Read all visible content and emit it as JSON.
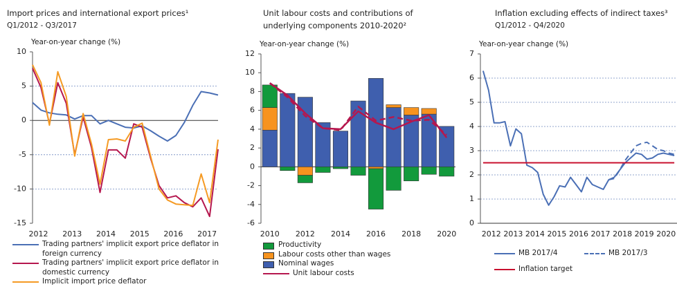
{
  "chart_data": [
    {
      "type": "line",
      "title": "Import prices and international export prices¹",
      "subtitle": "Q1/2012 - Q3/2017",
      "y_label": "Year-on-year change (%)",
      "categories": [
        "2012",
        null,
        null,
        null,
        "2013",
        null,
        null,
        null,
        "2014",
        null,
        null,
        null,
        "2015",
        null,
        null,
        null,
        "2016",
        null,
        null,
        null,
        "2017",
        null,
        null
      ],
      "ylim": [
        -15,
        10
      ],
      "yticks": [
        -15,
        -10,
        -5,
        0,
        5,
        10
      ],
      "grid": true,
      "legend": "bottom",
      "series": [
        {
          "name": "Trading partners' implicit export price deflator in foreign currency",
          "color": "#4a6fb5",
          "values": [
            2.6,
            1.5,
            1.1,
            0.9,
            0.8,
            0.2,
            0.7,
            0.7,
            -0.5,
            0,
            -0.5,
            -1.0,
            -1.1,
            -0.8,
            -1.5,
            -2.3,
            -3.0,
            -2.2,
            -0.3,
            2.2,
            4.2,
            4.0,
            3.7
          ]
        },
        {
          "name": "Trading partners' implicit export price deflator in domestic currency",
          "color": "#b5174e",
          "values": [
            7.6,
            4.8,
            -0.5,
            5.5,
            2.5,
            -5.0,
            0.5,
            -4.0,
            -10.5,
            -4.3,
            -4.3,
            -5.5,
            -0.5,
            -1.0,
            -5.5,
            -9.5,
            -11.3,
            -11.0,
            -12.0,
            -12.6,
            -11.3,
            -14.0,
            -4.2
          ]
        },
        {
          "name": "Implicit import price deflator",
          "color": "#f59a23",
          "values": [
            8.1,
            5.5,
            -0.7,
            7.1,
            3.5,
            -5.2,
            1.0,
            -3.5,
            -9.3,
            -2.8,
            -2.7,
            -3.0,
            -1.0,
            -0.4,
            -5.2,
            -10.0,
            -11.6,
            -12.2,
            -12.3,
            -12.4,
            -7.8,
            -12.0,
            -2.8
          ]
        }
      ]
    },
    {
      "type": "bar",
      "stacked": true,
      "title": "Unit labour costs and contributions of underlying components 2010-2020²",
      "y_label": "Year-on-year change (%)",
      "categories": [
        "2010",
        null,
        "2012",
        null,
        "2014",
        null,
        "2016",
        null,
        "2018",
        null,
        "2020"
      ],
      "ylim": [
        -6,
        12
      ],
      "yticks": [
        -6,
        -4,
        -2,
        0,
        2,
        4,
        6,
        8,
        10,
        12
      ],
      "grid": false,
      "legend": "bottom",
      "series": [
        {
          "name": "Productivity",
          "color": "#129a3c",
          "values": [
            2.4,
            -0.4,
            -0.8,
            -0.6,
            -0.2,
            -0.9,
            -4.3,
            -2.5,
            -1.5,
            -0.8,
            -1.0
          ]
        },
        {
          "name": "Labour costs other than wages",
          "color": "#f7931e",
          "values": [
            2.4,
            0,
            -0.9,
            0,
            0,
            0,
            -0.2,
            0.3,
            0.8,
            0.6,
            0
          ]
        },
        {
          "name": "Nominal wages",
          "color": "#3f5fae",
          "values": [
            3.9,
            7.8,
            7.4,
            4.7,
            3.8,
            7.0,
            9.4,
            6.3,
            5.5,
            5.6,
            4.3
          ]
        },
        {
          "name": "Unit labour costs",
          "type": "line",
          "color": "#b5174e",
          "values": [
            8.9,
            7.6,
            5.7,
            4.1,
            4.0,
            5.9,
            4.7,
            4.0,
            4.8,
            5.5,
            3.1
          ]
        },
        {
          "type": "line",
          "linestyle": "dashed",
          "color": "#b5174e",
          "values": [
            8.9,
            7.4,
            5.4,
            4.1,
            3.9,
            6.4,
            4.9,
            5.3,
            4.9,
            5.0,
            3.4
          ]
        }
      ]
    },
    {
      "type": "line",
      "title": "Inflation excluding effects of indirect taxes³",
      "subtitle": "Q1/2012 - Q4/2020",
      "y_label": "Year-on-year change (%)",
      "categories": [
        "2012",
        null,
        null,
        null,
        "2013",
        null,
        null,
        null,
        "2014",
        null,
        null,
        null,
        "2015",
        null,
        null,
        null,
        "2016",
        null,
        null,
        null,
        "2017",
        null,
        null,
        null,
        "2018",
        null,
        null,
        null,
        "2019",
        null,
        null,
        null,
        "2020",
        null,
        null,
        null
      ],
      "ylim": [
        0,
        7
      ],
      "yticks": [
        0,
        1,
        2,
        3,
        4,
        5,
        6,
        7
      ],
      "grid": true,
      "legend": "bottom",
      "series": [
        {
          "name": "MB 2017/4",
          "color": "#4a6fb5",
          "values": [
            6.3,
            5.5,
            4.15,
            4.15,
            4.2,
            3.2,
            3.9,
            3.7,
            2.4,
            2.3,
            2.1,
            1.2,
            0.75,
            1.1,
            1.55,
            1.5,
            1.9,
            1.6,
            1.3,
            1.9,
            1.6,
            1.5,
            1.4,
            1.8,
            1.9,
            2.2,
            2.5,
            2.7,
            2.9,
            2.85,
            2.65,
            2.7,
            2.85,
            2.9,
            2.85,
            2.8
          ]
        },
        {
          "name": "MB 2017/3",
          "color": "#4a6fb5",
          "linestyle": "dashed",
          "values": [
            null,
            null,
            null,
            null,
            null,
            null,
            null,
            null,
            null,
            null,
            null,
            null,
            null,
            null,
            null,
            null,
            null,
            null,
            null,
            null,
            null,
            null,
            null,
            1.8,
            1.85,
            2.2,
            2.6,
            2.9,
            3.2,
            3.3,
            3.35,
            3.2,
            3.05,
            3.0,
            2.9,
            2.85
          ]
        },
        {
          "name": "Inflation target",
          "color": "#c8102e",
          "values": [
            2.5,
            2.5,
            2.5,
            2.5,
            2.5,
            2.5,
            2.5,
            2.5,
            2.5,
            2.5,
            2.5,
            2.5,
            2.5,
            2.5,
            2.5,
            2.5,
            2.5,
            2.5,
            2.5,
            2.5,
            2.5,
            2.5,
            2.5,
            2.5,
            2.5,
            2.5,
            2.5,
            2.5,
            2.5,
            2.5,
            2.5,
            2.5,
            2.5,
            2.5,
            2.5,
            2.5
          ]
        }
      ]
    }
  ]
}
